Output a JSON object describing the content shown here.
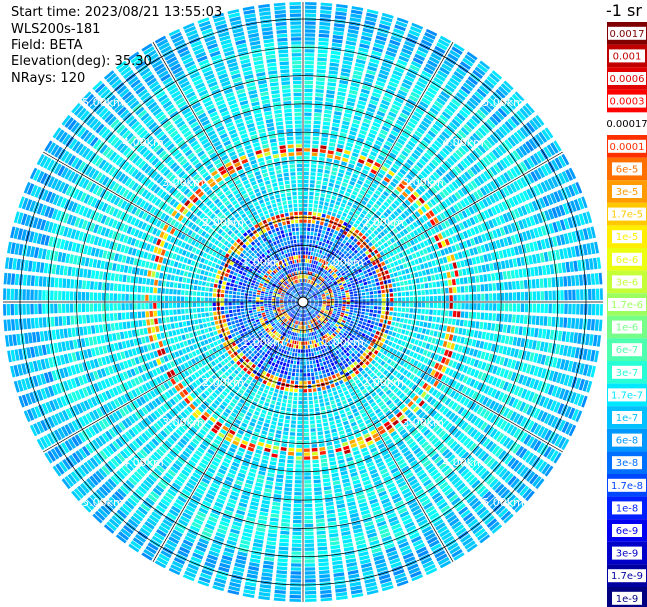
{
  "header": {
    "start_time": "Start time: 2023/08/21 13:55:03",
    "instrument": "WLS200s-181",
    "field": "Field: BETA",
    "elevation": "Elevation(deg): 35.30",
    "nrays": "NRays: 120"
  },
  "chart_data": {
    "type": "heatmap",
    "projection": "polar-ppi",
    "field": "BETA",
    "rays": 120,
    "max_range_km": 5.3,
    "range_rings_km": [
      0.5,
      1.0,
      1.5,
      2.0,
      2.5,
      3.0,
      3.5,
      4.0,
      4.5,
      5.0
    ],
    "labeled_rings_km": [
      1.0,
      2.0,
      3.0,
      4.0,
      5.0
    ],
    "ring_labels": [
      "1.00km",
      "2.00km",
      "3.00km",
      "4.00km",
      "5.00km"
    ],
    "spoke_angles_deg": [
      0,
      30,
      60,
      90,
      120,
      150,
      180,
      210,
      240,
      270,
      300,
      330
    ],
    "high_beta_rings": [
      {
        "range_km": 0.45,
        "level": 0.8
      },
      {
        "range_km": 0.78,
        "level": 0.9
      },
      {
        "range_km": 1.5,
        "level": 1.0
      },
      {
        "range_km": 2.7,
        "level": 0.8
      }
    ],
    "colorbar": {
      "title": "-1 sr",
      "tick_labels": [
        "0.0017",
        "0.001",
        "0.0006",
        "0.0003",
        "0.00017",
        "0.0001",
        "6e-5",
        "3e-5",
        "1.7e-5",
        "1e-5",
        "6e-6",
        "3e-6",
        "1.7e-6",
        "1e-6",
        "6e-7",
        "3e-7",
        "1.7e-7",
        "1e-7",
        "6e-8",
        "3e-8",
        "1.7e-8",
        "1e-8",
        "6e-9",
        "3e-9",
        "1.7e-9",
        "1e-9"
      ],
      "colors": [
        "#800000",
        "#c00000",
        "#e00000",
        "#ff0000",
        "#ffffff",
        "#ff3000",
        "#ff7000",
        "#ff9a00",
        "#ffc800",
        "#ffee00",
        "#ecff10",
        "#c4ff38",
        "#9cff60",
        "#76ff88",
        "#4effb0",
        "#28ffd6",
        "#00e8ff",
        "#00c0ff",
        "#0098ff",
        "#0070ff",
        "#0048ff",
        "#0020ff",
        "#0000f0",
        "#0000c8",
        "#0000a0",
        "#000080"
      ]
    }
  }
}
